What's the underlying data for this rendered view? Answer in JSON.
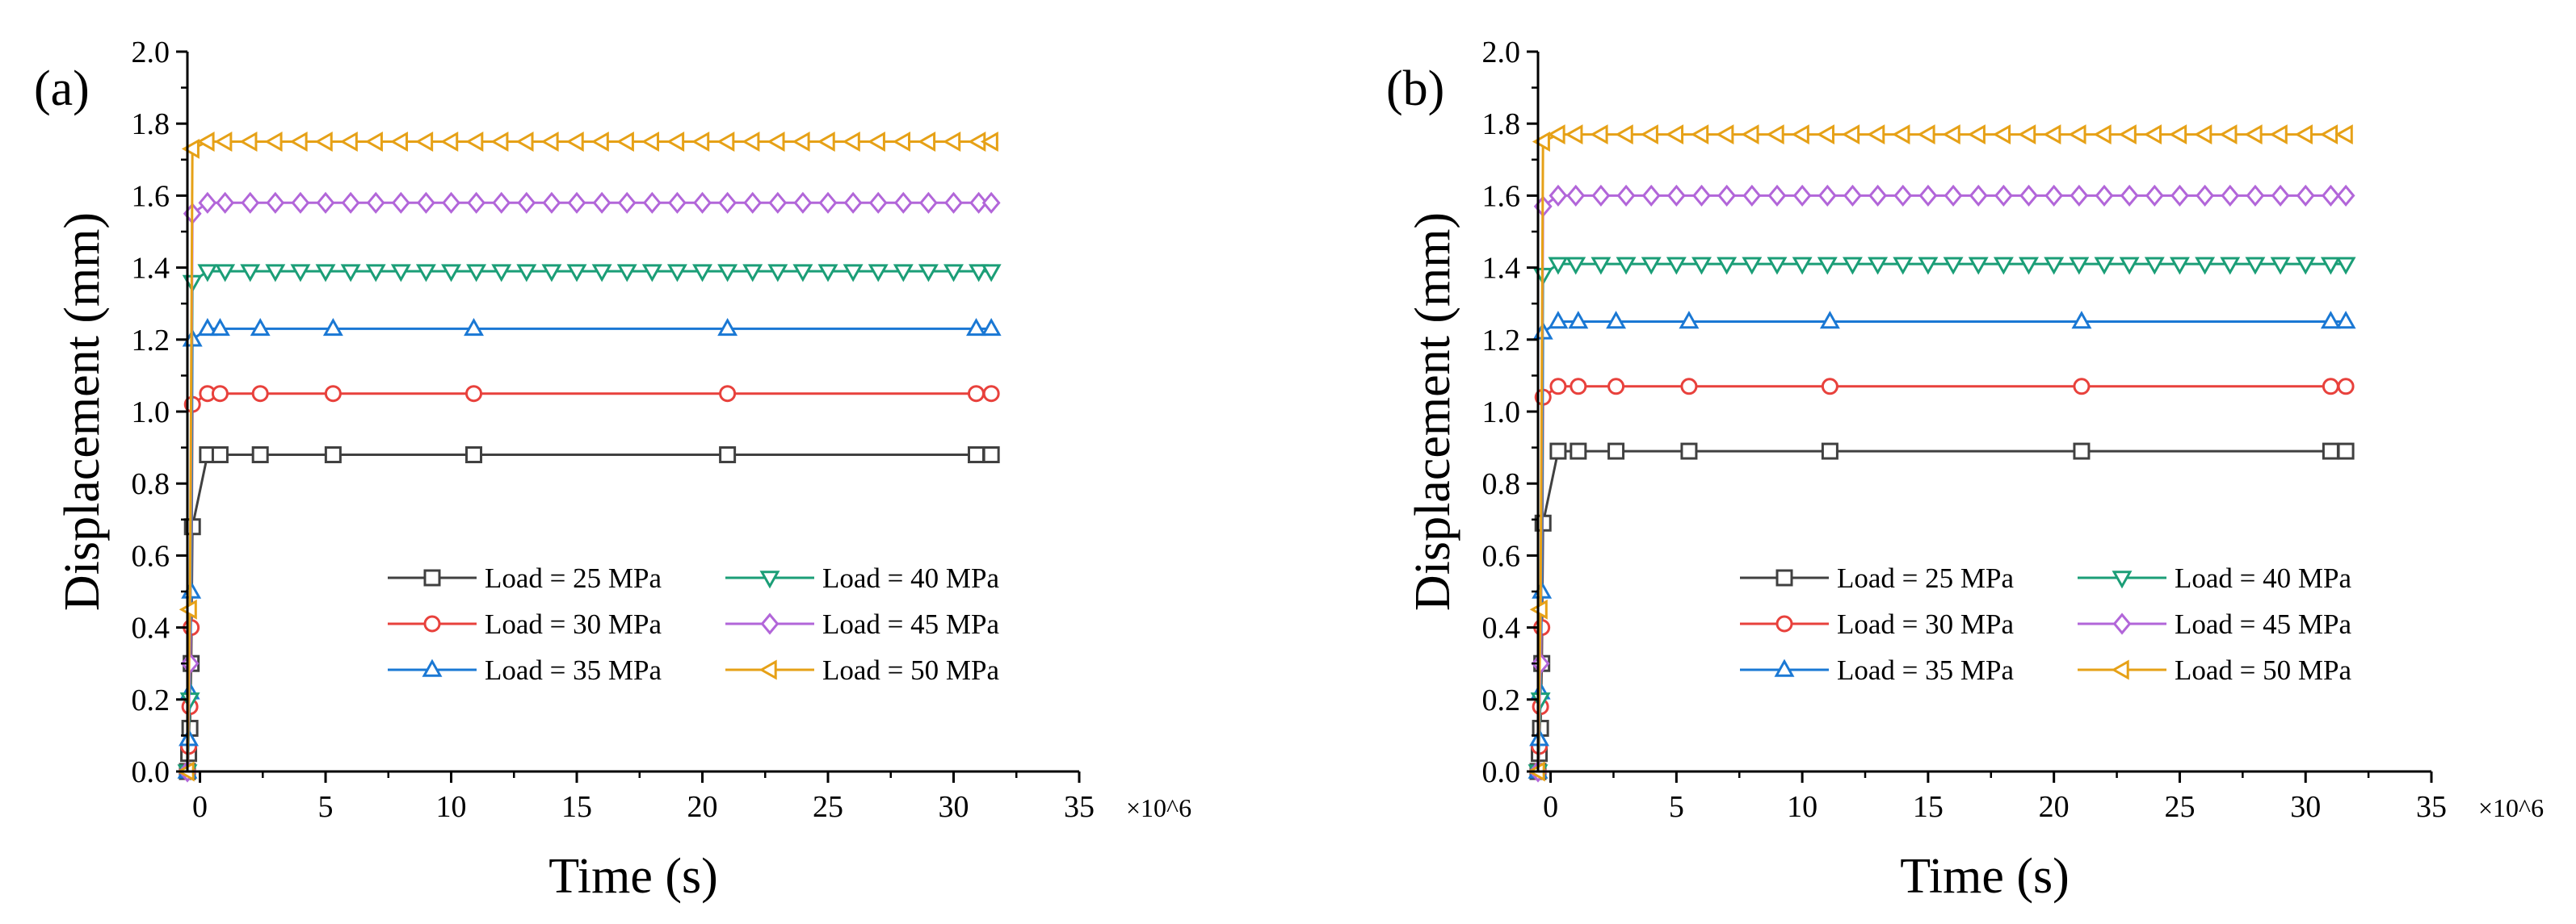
{
  "chart_data": [
    {
      "type": "line",
      "panel_label": "(a)",
      "xlabel": "Time (s)",
      "ylabel": "Displacement (mm)",
      "x_multiplier_label": "×10^6",
      "xlim": [
        -0.5,
        35
      ],
      "ylim": [
        0.0,
        2.0
      ],
      "x_ticks": [
        0,
        5,
        10,
        15,
        20,
        25,
        30,
        35
      ],
      "x_tick_labels": [
        "0",
        "5",
        "10",
        "15",
        "20",
        "25",
        "30",
        "35"
      ],
      "y_ticks": [
        0.0,
        0.2,
        0.4,
        0.6,
        0.8,
        1.0,
        1.2,
        1.4,
        1.6,
        1.8,
        2.0
      ],
      "y_tick_labels": [
        "0.0",
        "0.2",
        "0.4",
        "0.6",
        "0.8",
        "1.0",
        "1.2",
        "1.4",
        "1.6",
        "1.8",
        "2.0"
      ],
      "legend_columns": 2,
      "series": [
        {
          "name": "Load = 25 MPa",
          "color": "#404040",
          "marker": "square",
          "x": [
            -0.5,
            -0.45,
            -0.4,
            -0.35,
            -0.3,
            0.3,
            0.8,
            2.4,
            5.3,
            10.9,
            21.0,
            30.9,
            31.5
          ],
          "values": [
            0.0,
            0.05,
            0.12,
            0.3,
            0.68,
            0.88,
            0.88,
            0.88,
            0.88,
            0.88,
            0.88,
            0.88,
            0.88
          ]
        },
        {
          "name": "Load = 30 MPa",
          "color": "#e8413c",
          "marker": "circle",
          "x": [
            -0.5,
            -0.45,
            -0.4,
            -0.35,
            -0.3,
            0.3,
            0.8,
            2.4,
            5.3,
            10.9,
            21.0,
            30.9,
            31.5
          ],
          "values": [
            0.0,
            0.07,
            0.18,
            0.4,
            1.02,
            1.05,
            1.05,
            1.05,
            1.05,
            1.05,
            1.05,
            1.05,
            1.05
          ]
        },
        {
          "name": "Load = 35 MPa",
          "color": "#1a78d4",
          "marker": "triangle-up",
          "x": [
            -0.5,
            -0.45,
            -0.4,
            -0.35,
            -0.3,
            0.3,
            0.8,
            2.4,
            5.3,
            10.9,
            21.0,
            30.9,
            31.5
          ],
          "values": [
            0.0,
            0.09,
            0.22,
            0.5,
            1.2,
            1.23,
            1.23,
            1.23,
            1.23,
            1.23,
            1.23,
            1.23,
            1.23
          ]
        },
        {
          "name": "Load = 40 MPa",
          "color": "#1b9e77",
          "marker": "triangle-down",
          "x": [
            -0.5,
            -0.4,
            -0.3,
            0.3,
            1.0,
            2.0,
            3.0,
            4.0,
            5.0,
            6.0,
            7.0,
            8.0,
            9.0,
            10.0,
            11.0,
            12.0,
            13.0,
            14.0,
            15.0,
            16.0,
            17.0,
            18.0,
            19.0,
            20.0,
            21.0,
            22.0,
            23.0,
            24.0,
            25.0,
            26.0,
            27.0,
            28.0,
            29.0,
            30.0,
            31.0,
            31.5
          ],
          "values": [
            0.0,
            0.2,
            1.36,
            1.39,
            1.39,
            1.39,
            1.39,
            1.39,
            1.39,
            1.39,
            1.39,
            1.39,
            1.39,
            1.39,
            1.39,
            1.39,
            1.39,
            1.39,
            1.39,
            1.39,
            1.39,
            1.39,
            1.39,
            1.39,
            1.39,
            1.39,
            1.39,
            1.39,
            1.39,
            1.39,
            1.39,
            1.39,
            1.39,
            1.39,
            1.39,
            1.39
          ]
        },
        {
          "name": "Load = 45 MPa",
          "color": "#b266d9",
          "marker": "diamond",
          "x": [
            -0.5,
            -0.4,
            -0.3,
            0.3,
            1.0,
            2.0,
            3.0,
            4.0,
            5.0,
            6.0,
            7.0,
            8.0,
            9.0,
            10.0,
            11.0,
            12.0,
            13.0,
            14.0,
            15.0,
            16.0,
            17.0,
            18.0,
            19.0,
            20.0,
            21.0,
            22.0,
            23.0,
            24.0,
            25.0,
            26.0,
            27.0,
            28.0,
            29.0,
            30.0,
            31.0,
            31.5
          ],
          "values": [
            0.0,
            0.3,
            1.55,
            1.58,
            1.58,
            1.58,
            1.58,
            1.58,
            1.58,
            1.58,
            1.58,
            1.58,
            1.58,
            1.58,
            1.58,
            1.58,
            1.58,
            1.58,
            1.58,
            1.58,
            1.58,
            1.58,
            1.58,
            1.58,
            1.58,
            1.58,
            1.58,
            1.58,
            1.58,
            1.58,
            1.58,
            1.58,
            1.58,
            1.58,
            1.58,
            1.58
          ]
        },
        {
          "name": "Load = 50 MPa",
          "color": "#e6a117",
          "marker": "triangle-left",
          "x": [
            -0.5,
            -0.4,
            -0.3,
            0.3,
            1.0,
            2.0,
            3.0,
            4.0,
            5.0,
            6.0,
            7.0,
            8.0,
            9.0,
            10.0,
            11.0,
            12.0,
            13.0,
            14.0,
            15.0,
            16.0,
            17.0,
            18.0,
            19.0,
            20.0,
            21.0,
            22.0,
            23.0,
            24.0,
            25.0,
            26.0,
            27.0,
            28.0,
            29.0,
            30.0,
            31.0,
            31.5
          ],
          "values": [
            0.0,
            0.45,
            1.73,
            1.75,
            1.75,
            1.75,
            1.75,
            1.75,
            1.75,
            1.75,
            1.75,
            1.75,
            1.75,
            1.75,
            1.75,
            1.75,
            1.75,
            1.75,
            1.75,
            1.75,
            1.75,
            1.75,
            1.75,
            1.75,
            1.75,
            1.75,
            1.75,
            1.75,
            1.75,
            1.75,
            1.75,
            1.75,
            1.75,
            1.75,
            1.75,
            1.75
          ]
        }
      ]
    },
    {
      "type": "line",
      "panel_label": "(b)",
      "xlabel": "Time (s)",
      "ylabel": "Displacement (mm)",
      "x_multiplier_label": "×10^6",
      "xlim": [
        -0.5,
        35
      ],
      "ylim": [
        0.0,
        2.0
      ],
      "x_ticks": [
        0,
        5,
        10,
        15,
        20,
        25,
        30,
        35
      ],
      "x_tick_labels": [
        "0",
        "5",
        "10",
        "15",
        "20",
        "25",
        "30",
        "35"
      ],
      "y_ticks": [
        0.0,
        0.2,
        0.4,
        0.6,
        0.8,
        1.0,
        1.2,
        1.4,
        1.6,
        1.8,
        2.0
      ],
      "y_tick_labels": [
        "0.0",
        "0.2",
        "0.4",
        "0.6",
        "0.8",
        "1.0",
        "1.2",
        "1.4",
        "1.6",
        "1.8",
        "2.0"
      ],
      "legend_columns": 2,
      "series": [
        {
          "name": "Load = 25 MPa",
          "color": "#404040",
          "marker": "square",
          "x": [
            -0.5,
            -0.45,
            -0.4,
            -0.35,
            -0.3,
            0.3,
            1.1,
            2.6,
            5.5,
            11.1,
            21.1,
            31.0,
            31.6
          ],
          "values": [
            0.0,
            0.05,
            0.12,
            0.3,
            0.69,
            0.89,
            0.89,
            0.89,
            0.89,
            0.89,
            0.89,
            0.89,
            0.89
          ]
        },
        {
          "name": "Load = 30 MPa",
          "color": "#e8413c",
          "marker": "circle",
          "x": [
            -0.5,
            -0.45,
            -0.4,
            -0.35,
            -0.3,
            0.3,
            1.1,
            2.6,
            5.5,
            11.1,
            21.1,
            31.0,
            31.6
          ],
          "values": [
            0.0,
            0.07,
            0.18,
            0.4,
            1.04,
            1.07,
            1.07,
            1.07,
            1.07,
            1.07,
            1.07,
            1.07,
            1.07
          ]
        },
        {
          "name": "Load = 35 MPa",
          "color": "#1a78d4",
          "marker": "triangle-up",
          "x": [
            -0.5,
            -0.45,
            -0.4,
            -0.35,
            -0.3,
            0.3,
            1.1,
            2.6,
            5.5,
            11.1,
            21.1,
            31.0,
            31.6
          ],
          "values": [
            0.0,
            0.09,
            0.22,
            0.5,
            1.22,
            1.25,
            1.25,
            1.25,
            1.25,
            1.25,
            1.25,
            1.25,
            1.25
          ]
        },
        {
          "name": "Load = 40 MPa",
          "color": "#1b9e77",
          "marker": "triangle-down",
          "x": [
            -0.5,
            -0.4,
            -0.3,
            0.3,
            1.0,
            2.0,
            3.0,
            4.0,
            5.0,
            6.0,
            7.0,
            8.0,
            9.0,
            10.0,
            11.0,
            12.0,
            13.0,
            14.0,
            15.0,
            16.0,
            17.0,
            18.0,
            19.0,
            20.0,
            21.0,
            22.0,
            23.0,
            24.0,
            25.0,
            26.0,
            27.0,
            28.0,
            29.0,
            30.0,
            31.0,
            31.6
          ],
          "values": [
            0.0,
            0.2,
            1.38,
            1.41,
            1.41,
            1.41,
            1.41,
            1.41,
            1.41,
            1.41,
            1.41,
            1.41,
            1.41,
            1.41,
            1.41,
            1.41,
            1.41,
            1.41,
            1.41,
            1.41,
            1.41,
            1.41,
            1.41,
            1.41,
            1.41,
            1.41,
            1.41,
            1.41,
            1.41,
            1.41,
            1.41,
            1.41,
            1.41,
            1.41,
            1.41,
            1.41
          ]
        },
        {
          "name": "Load = 45 MPa",
          "color": "#b266d9",
          "marker": "diamond",
          "x": [
            -0.5,
            -0.4,
            -0.3,
            0.3,
            1.0,
            2.0,
            3.0,
            4.0,
            5.0,
            6.0,
            7.0,
            8.0,
            9.0,
            10.0,
            11.0,
            12.0,
            13.0,
            14.0,
            15.0,
            16.0,
            17.0,
            18.0,
            19.0,
            20.0,
            21.0,
            22.0,
            23.0,
            24.0,
            25.0,
            26.0,
            27.0,
            28.0,
            29.0,
            30.0,
            31.0,
            31.6
          ],
          "values": [
            0.0,
            0.3,
            1.57,
            1.6,
            1.6,
            1.6,
            1.6,
            1.6,
            1.6,
            1.6,
            1.6,
            1.6,
            1.6,
            1.6,
            1.6,
            1.6,
            1.6,
            1.6,
            1.6,
            1.6,
            1.6,
            1.6,
            1.6,
            1.6,
            1.6,
            1.6,
            1.6,
            1.6,
            1.6,
            1.6,
            1.6,
            1.6,
            1.6,
            1.6,
            1.6,
            1.6
          ]
        },
        {
          "name": "Load = 50 MPa",
          "color": "#e6a117",
          "marker": "triangle-left",
          "x": [
            -0.5,
            -0.4,
            -0.3,
            0.3,
            1.0,
            2.0,
            3.0,
            4.0,
            5.0,
            6.0,
            7.0,
            8.0,
            9.0,
            10.0,
            11.0,
            12.0,
            13.0,
            14.0,
            15.0,
            16.0,
            17.0,
            18.0,
            19.0,
            20.0,
            21.0,
            22.0,
            23.0,
            24.0,
            25.0,
            26.0,
            27.0,
            28.0,
            29.0,
            30.0,
            31.0,
            31.6
          ],
          "values": [
            0.0,
            0.45,
            1.75,
            1.77,
            1.77,
            1.77,
            1.77,
            1.77,
            1.77,
            1.77,
            1.77,
            1.77,
            1.77,
            1.77,
            1.77,
            1.77,
            1.77,
            1.77,
            1.77,
            1.77,
            1.77,
            1.77,
            1.77,
            1.77,
            1.77,
            1.77,
            1.77,
            1.77,
            1.77,
            1.77,
            1.77,
            1.77,
            1.77,
            1.77,
            1.77,
            1.77
          ]
        }
      ]
    }
  ]
}
